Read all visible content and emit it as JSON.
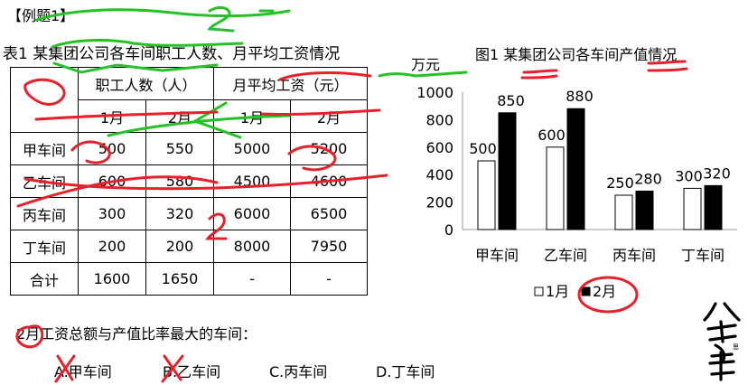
{
  "example_title": "【例题1】",
  "table": {
    "caption": "表1  某集团公司各车间职工人数、月平均工资情况",
    "group_headers": [
      "职工人数（人）",
      "月平均工资（元）"
    ],
    "sub_headers": [
      "1月",
      "2月",
      "1月",
      "2月"
    ],
    "rows": [
      {
        "name": "甲车间",
        "cells": [
          "500",
          "550",
          "5000",
          "5200"
        ]
      },
      {
        "name": "乙车间",
        "cells": [
          "600",
          "580",
          "4500",
          "4600"
        ]
      },
      {
        "name": "丙车间",
        "cells": [
          "300",
          "320",
          "6000",
          "6500"
        ]
      },
      {
        "name": "丁车间",
        "cells": [
          "200",
          "200",
          "8000",
          "7950"
        ]
      },
      {
        "name": "合计",
        "cells": [
          "1600",
          "1650",
          "-",
          "-"
        ]
      }
    ]
  },
  "chart_data": {
    "type": "bar",
    "title": "图1  某集团公司各车间产值情况",
    "ylabel": "万元",
    "ylim": [
      0,
      1000
    ],
    "yticks": [
      0,
      200,
      400,
      600,
      800,
      1000
    ],
    "categories": [
      "甲车间",
      "乙车间",
      "丙车间",
      "丁车间"
    ],
    "series": [
      {
        "name": "1月",
        "values": [
          500,
          600,
          250,
          300
        ],
        "color": "#ffffff"
      },
      {
        "name": "2月",
        "values": [
          850,
          880,
          280,
          320
        ],
        "color": "#000000"
      }
    ],
    "legend": "bottom",
    "grid": false
  },
  "question": {
    "text": "2月工资总额与产值比率最大的车间：",
    "options": [
      "A.甲车间",
      "B.乙车间",
      "C.丙车间",
      "D.丁车间"
    ]
  },
  "colors": {
    "ink": "#000000",
    "annotation_red": "#e8202a",
    "annotation_green": "#22c322"
  }
}
